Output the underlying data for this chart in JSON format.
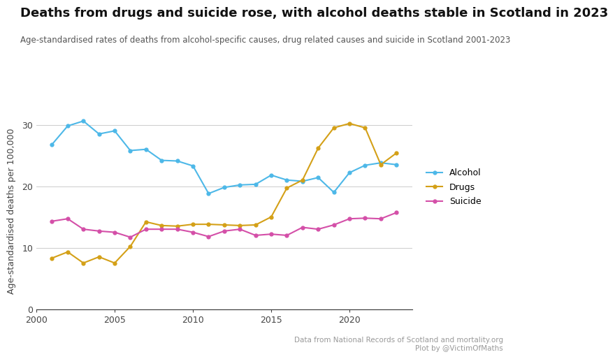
{
  "title": "Deaths from drugs and suicide rose, with alcohol deaths stable in Scotland in 2023",
  "subtitle": "Age-standardised rates of deaths from alcohol-specific causes, drug related causes and suicide in Scotland 2001-2023",
  "ylabel": "Age-standardised deaths per 100,000",
  "source_text": "Data from National Records of Scotland and mortality.org\nPlot by @VictimOfMaths",
  "years": [
    2001,
    2002,
    2003,
    2004,
    2005,
    2006,
    2007,
    2008,
    2009,
    2010,
    2011,
    2012,
    2013,
    2014,
    2015,
    2016,
    2017,
    2018,
    2019,
    2020,
    2021,
    2022,
    2023
  ],
  "alcohol": [
    26.8,
    29.8,
    30.6,
    28.5,
    29.0,
    25.8,
    26.0,
    24.2,
    24.1,
    23.3,
    18.8,
    19.8,
    20.2,
    20.3,
    21.8,
    21.0,
    20.8,
    21.4,
    19.0,
    22.2,
    23.4,
    23.8,
    23.5
  ],
  "drugs": [
    8.3,
    9.3,
    7.5,
    8.5,
    7.5,
    10.2,
    14.2,
    13.6,
    13.5,
    13.8,
    13.8,
    13.7,
    13.6,
    13.7,
    15.0,
    19.7,
    21.0,
    26.2,
    29.5,
    30.2,
    29.5,
    23.5,
    25.4
  ],
  "suicide": [
    14.3,
    14.7,
    13.0,
    12.7,
    12.5,
    11.7,
    13.0,
    13.0,
    13.0,
    12.5,
    11.8,
    12.7,
    13.0,
    12.0,
    12.2,
    12.0,
    13.3,
    13.0,
    13.7,
    14.7,
    14.8,
    14.7,
    15.7
  ],
  "alcohol_color": "#4db8e8",
  "drugs_color": "#d4a017",
  "suicide_color": "#d44fa8",
  "background_color": "#ffffff",
  "grid_color": "#cccccc",
  "ylim": [
    0,
    32
  ],
  "xlim": [
    2000,
    2024
  ],
  "yticks": [
    0,
    10,
    20,
    30
  ],
  "xticks": [
    2000,
    2005,
    2010,
    2015,
    2020
  ],
  "title_fontsize": 13,
  "subtitle_fontsize": 8.5,
  "axis_fontsize": 9,
  "legend_labels": [
    "Alcohol",
    "Drugs",
    "Suicide"
  ],
  "source_fontsize": 7.5
}
